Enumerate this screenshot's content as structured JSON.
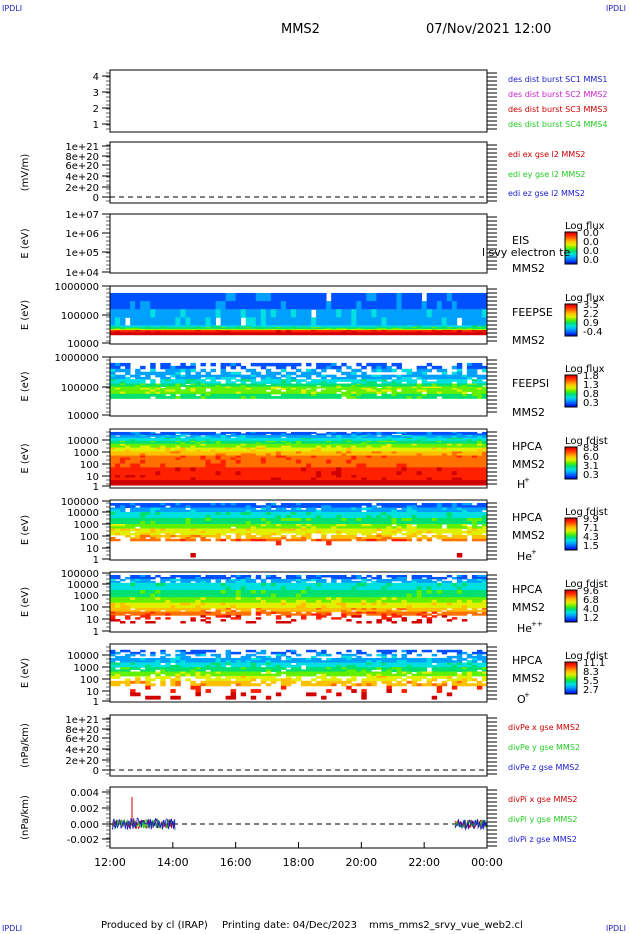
{
  "corner_text": "IPDLI",
  "header": {
    "spacecraft": "MMS2",
    "datetime": "07/Nov/2021 12:00"
  },
  "footer": {
    "produced": "Produced by cl (IRAP)",
    "printing": "Printing date: 04/Dec/2023",
    "script": "mms_mms2_srvy_vue_web2.cl"
  },
  "colors": {
    "frame": "#000000",
    "red": "#cc0000",
    "green": "#22cc22",
    "blue": "#1a1acc",
    "magenta": "#cc22cc"
  },
  "chart_data": [
    {
      "type": "line",
      "id": "burst",
      "y_ticks": [
        "1",
        "2",
        "3",
        "4"
      ],
      "legend": [
        {
          "text": "des dist burst SC1 MMS1",
          "color": "#1a1acc"
        },
        {
          "text": "des dist burst SC2 MMS2",
          "color": "#cc22cc"
        },
        {
          "text": "des dist burst SC3 MMS3",
          "color": "#cc0000"
        },
        {
          "text": "des dist burst SC4 MMS4",
          "color": "#22cc22"
        }
      ]
    },
    {
      "type": "line",
      "id": "edi",
      "ylabel": "(mV/m)",
      "y_ticks": [
        "0",
        "2e+20",
        "4e+20",
        "6e+20",
        "8e+20",
        "1e+21"
      ],
      "legend": [
        {
          "text": "edi ex gse l2 MMS2",
          "color": "#cc0000"
        },
        {
          "text": "edi ey gse l2 MMS2",
          "color": "#22cc22"
        },
        {
          "text": "edi ez gse l2 MMS2",
          "color": "#1a1acc"
        }
      ]
    },
    {
      "type": "heatmap",
      "id": "eis",
      "ylabel": "E (eV)",
      "y_ticks": [
        "1e+04",
        "1e+05",
        "1e+06",
        "1e+07"
      ],
      "labels": [
        "EIS",
        "MMS2"
      ],
      "overlay_text": "l svy electron te",
      "cbar_title": "Log flux",
      "cbar_ticks": [
        "0.0",
        "0.0",
        "0.0",
        "0.0"
      ]
    },
    {
      "type": "heatmap",
      "id": "feepse",
      "ylabel": "E (eV)",
      "y_ticks": [
        "10000",
        "100000",
        "1000000"
      ],
      "labels": [
        "FEEPSE",
        "MMS2"
      ],
      "cbar_title": "Log flux",
      "cbar_ticks": [
        "3.5",
        "2.2",
        "0.9",
        "-0.4"
      ]
    },
    {
      "type": "heatmap",
      "id": "feepsi",
      "ylabel": "E (eV)",
      "y_ticks": [
        "10000",
        "100000",
        "1000000"
      ],
      "labels": [
        "FEEPSI",
        "MMS2"
      ],
      "cbar_title": "Log flux",
      "cbar_ticks": [
        "1.8",
        "1.3",
        "0.8",
        "0.3"
      ]
    },
    {
      "type": "heatmap",
      "id": "hpca_h",
      "ylabel": "E (eV)",
      "y_ticks": [
        "1",
        "10",
        "100",
        "1000",
        "10000"
      ],
      "labels": [
        "HPCA",
        "MMS2",
        "H",
        "+"
      ],
      "cbar_title": "Log fdist",
      "cbar_ticks": [
        "8.8",
        "6.0",
        "3.1",
        "0.3"
      ]
    },
    {
      "type": "heatmap",
      "id": "hpca_he",
      "ylabel": "E (eV)",
      "y_ticks": [
        "1",
        "10",
        "100",
        "1000",
        "10000",
        "100000"
      ],
      "labels": [
        "HPCA",
        "MMS2",
        "He",
        "+"
      ],
      "cbar_title": "Log fdist",
      "cbar_ticks": [
        "9.9",
        "7.1",
        "4.3",
        "1.5"
      ]
    },
    {
      "type": "heatmap",
      "id": "hpca_he2",
      "ylabel": "E (eV)",
      "y_ticks": [
        "1",
        "10",
        "100",
        "1000",
        "10000",
        "100000"
      ],
      "labels": [
        "HPCA",
        "MMS2",
        "He",
        "++"
      ],
      "cbar_title": "Log fdist",
      "cbar_ticks": [
        "9.6",
        "6.8",
        "4.0",
        "1.2"
      ]
    },
    {
      "type": "heatmap",
      "id": "hpca_o",
      "ylabel": "E (eV)",
      "y_ticks": [
        "1",
        "10",
        "100",
        "1000",
        "10000"
      ],
      "labels": [
        "HPCA",
        "MMS2",
        "O",
        "+"
      ],
      "cbar_title": "Log fdist",
      "cbar_ticks": [
        "11.1",
        "8.3",
        "5.5",
        "2.7"
      ]
    },
    {
      "type": "line",
      "id": "divpe",
      "ylabel": "(nPa/km)",
      "y_ticks": [
        "0",
        "2e+20",
        "4e+20",
        "6e+20",
        "8e+20",
        "1e+21"
      ],
      "legend": [
        {
          "text": "divPe x gse MMS2",
          "color": "#cc0000"
        },
        {
          "text": "divPe y gse MMS2",
          "color": "#22cc22"
        },
        {
          "text": "divPe z gse MMS2",
          "color": "#1a1acc"
        }
      ]
    },
    {
      "type": "line",
      "id": "divpi",
      "ylabel": "(nPa/km)",
      "y_ticks": [
        "-0.002",
        "0.000",
        "0.002",
        "0.004"
      ],
      "legend": [
        {
          "text": "divPi x gse MMS2",
          "color": "#cc0000"
        },
        {
          "text": "divPi y gse MMS2",
          "color": "#22cc22"
        },
        {
          "text": "divPi z gse MMS2",
          "color": "#1a1acc"
        }
      ],
      "data_coverage": [
        [
          "12:00",
          "14:00"
        ],
        [
          "22:50",
          "00:00"
        ]
      ]
    }
  ],
  "x_axis": {
    "ticks": [
      "12:00",
      "14:00",
      "16:00",
      "18:00",
      "20:00",
      "22:00",
      "00:00"
    ]
  }
}
